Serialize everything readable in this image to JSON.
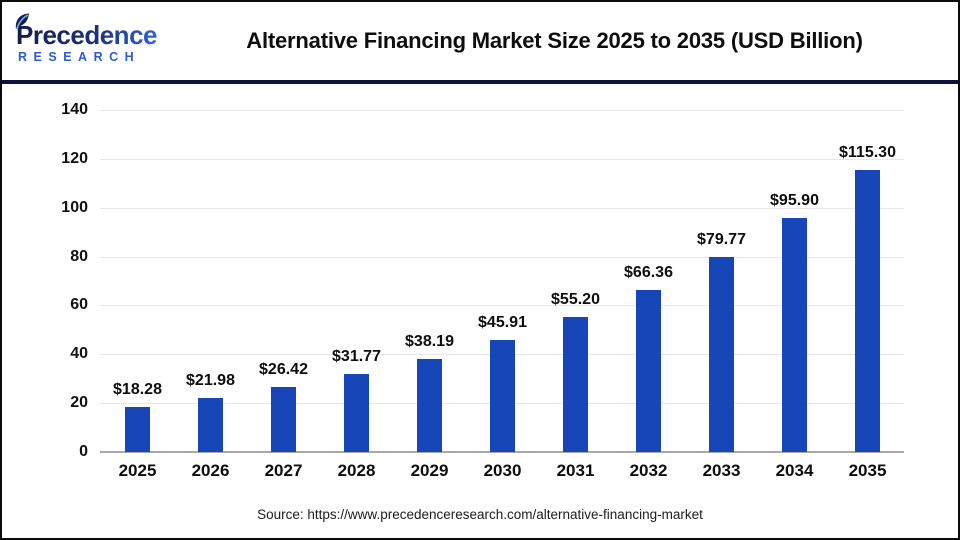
{
  "header": {
    "logo": {
      "name": "Precedence",
      "sub": "RESEARCH"
    },
    "title": "Alternative Financing Market Size 2025 to 2035 (USD Billion)"
  },
  "chart_data": {
    "type": "bar",
    "title": "Alternative Financing Market Size 2025 to 2035 (USD Billion)",
    "unit": "USD Billion",
    "categories": [
      "2025",
      "2026",
      "2027",
      "2028",
      "2029",
      "2030",
      "2031",
      "2032",
      "2033",
      "2034",
      "2035"
    ],
    "values": [
      18.28,
      21.98,
      26.42,
      31.77,
      38.19,
      45.91,
      55.2,
      66.36,
      79.77,
      95.9,
      115.3
    ],
    "value_labels": [
      "$18.28",
      "$21.98",
      "$26.42",
      "$31.77",
      "$38.19",
      "$45.91",
      "$55.20",
      "$66.36",
      "$79.77",
      "$95.90",
      "$115.30"
    ],
    "xlabel": "",
    "ylabel": "",
    "ylim": [
      0,
      140
    ],
    "yticks": [
      0,
      20,
      40,
      60,
      80,
      100,
      120,
      140
    ],
    "grid": true,
    "legend": "none",
    "bar_color": "#1746b8"
  },
  "footer": {
    "source": "Source: https://www.precedenceresearch.com/alternative-financing-market"
  },
  "colors": {
    "bar": "#1746b8",
    "divider": "#10123e",
    "gridline": "#e8e8e8",
    "axis_line": "#a8a8a8",
    "logo_navy": "#141c4d",
    "logo_blue": "#2d5bd0",
    "title_text": "#0d0d0d"
  }
}
